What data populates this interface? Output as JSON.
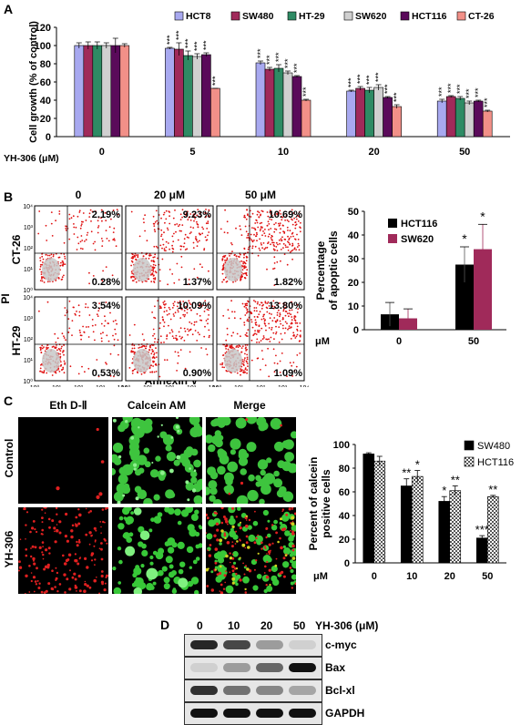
{
  "panelA": {
    "label": "A",
    "ylabel": "Cell growth (% of control)",
    "xprefix": "YH-306 (μM)",
    "legend": [
      {
        "name": "HCT8",
        "color": "#a8a9f0"
      },
      {
        "name": "SW480",
        "color": "#a02a5a"
      },
      {
        "name": "HT-29",
        "color": "#2e8b64"
      },
      {
        "name": "SW620",
        "color": "#d0d0d0"
      },
      {
        "name": "HCT116",
        "color": "#5a0a5a"
      },
      {
        "name": "CT-26",
        "color": "#f29088"
      }
    ],
    "stars": [
      "***",
      "***",
      "***",
      "***",
      "***",
      "***",
      "***",
      "***",
      "***",
      "***",
      "***",
      "***",
      "***",
      "***",
      "***",
      "***",
      "***",
      "***",
      "***",
      "***",
      "***",
      "***",
      "***",
      "***",
      "***"
    ]
  },
  "panelB": {
    "label": "B",
    "col_titles": [
      "0",
      "20 μM",
      "50 μM"
    ],
    "row_labels": [
      "CT-26",
      "HT-29"
    ],
    "y_axis": "PI",
    "x_axis": "Annexin V",
    "percents": [
      [
        [
          "2.19%",
          "0.28%"
        ],
        [
          "9.23%",
          "1.37%"
        ],
        [
          "10.69%",
          "1.82%"
        ]
      ],
      [
        [
          "3.54%",
          "0.53%"
        ],
        [
          "10.09%",
          "0.90%"
        ],
        [
          "13.80%",
          "1.09%"
        ]
      ]
    ],
    "ticks": [
      "10⁰",
      "10¹",
      "10²",
      "10³",
      "10⁴"
    ],
    "ylabel": "Percentage of apoptic cells",
    "xprefix": "μM"
  },
  "panelC": {
    "label": "C",
    "col_titles": [
      "Eth D-Ⅱ",
      "Calcein AM",
      "Merge"
    ],
    "row_labels": [
      "Control",
      "YH-306"
    ],
    "ylabel": "Percent of calcein positive cells",
    "xprefix": "μM"
  },
  "panelD": {
    "label": "D",
    "lanes": [
      "0",
      "10",
      "20",
      "50"
    ],
    "treatment": "YH-306 (μM)",
    "proteins": [
      "c-myc",
      "Bax",
      "Bcl-xl",
      "GAPDH"
    ],
    "intensity": [
      [
        0.9,
        0.75,
        0.35,
        0.1
      ],
      [
        0.1,
        0.35,
        0.6,
        1.0
      ],
      [
        0.85,
        0.55,
        0.45,
        0.3
      ],
      [
        1.0,
        1.0,
        1.0,
        1.0
      ]
    ]
  },
  "chart_data": [
    {
      "type": "bar",
      "categories": [
        "0",
        "5",
        "10",
        "20",
        "50"
      ],
      "series": [
        {
          "name": "HCT8",
          "values": [
            100,
            97,
            81,
            50,
            39
          ]
        },
        {
          "name": "SW480",
          "values": [
            100,
            96,
            74,
            53,
            44
          ]
        },
        {
          "name": "HT-29",
          "values": [
            100,
            89,
            75,
            51,
            42
          ]
        },
        {
          "name": "SW620",
          "values": [
            100,
            88,
            70,
            54,
            37
          ]
        },
        {
          "name": "HCT116",
          "values": [
            100,
            90,
            66,
            43,
            39
          ]
        },
        {
          "name": "CT-26",
          "values": [
            100,
            53,
            40,
            33,
            28
          ]
        }
      ],
      "errors": [
        [
          3,
          1,
          2,
          1,
          2
        ],
        [
          4,
          7,
          2,
          2,
          1
        ],
        [
          4,
          5,
          4,
          3,
          2
        ],
        [
          3,
          3,
          2,
          3,
          2
        ],
        [
          8,
          2,
          1,
          1,
          1
        ],
        [
          2,
          0,
          1,
          2,
          1
        ]
      ],
      "ylabel": "Cell growth (% of control)",
      "ylim": [
        0,
        120
      ],
      "yticks": [
        0,
        20,
        40,
        60,
        80,
        100,
        120
      ]
    },
    {
      "type": "bar",
      "categories": [
        "0",
        "50"
      ],
      "series": [
        {
          "name": "HCT116",
          "values": [
            6.5,
            27.5
          ]
        },
        {
          "name": "SW620",
          "values": [
            4.8,
            34
          ]
        }
      ],
      "errors": [
        [
          5,
          7.5
        ],
        [
          4,
          10.5
        ]
      ],
      "stars": [
        "*",
        "*"
      ],
      "ylabel": "Percentage of apoptic cells",
      "ylim": [
        0,
        50
      ],
      "yticks": [
        0,
        10,
        20,
        30,
        40,
        50
      ]
    },
    {
      "type": "bar",
      "categories": [
        "0",
        "10",
        "20",
        "50"
      ],
      "series": [
        {
          "name": "SW480",
          "values": [
            92,
            65,
            52,
            21
          ]
        },
        {
          "name": "HCT116",
          "values": [
            86,
            73,
            61,
            56
          ]
        }
      ],
      "errors": [
        [
          1,
          6,
          4,
          2
        ],
        [
          4,
          5,
          4,
          1
        ]
      ],
      "stars": [
        [
          "",
          "**",
          "*",
          "***"
        ],
        [
          "",
          "*",
          "**",
          "**"
        ]
      ],
      "ylabel": "Percent of calcein positive cells",
      "ylim": [
        0,
        100
      ],
      "yticks": [
        0,
        20,
        40,
        60,
        80,
        100
      ]
    }
  ]
}
